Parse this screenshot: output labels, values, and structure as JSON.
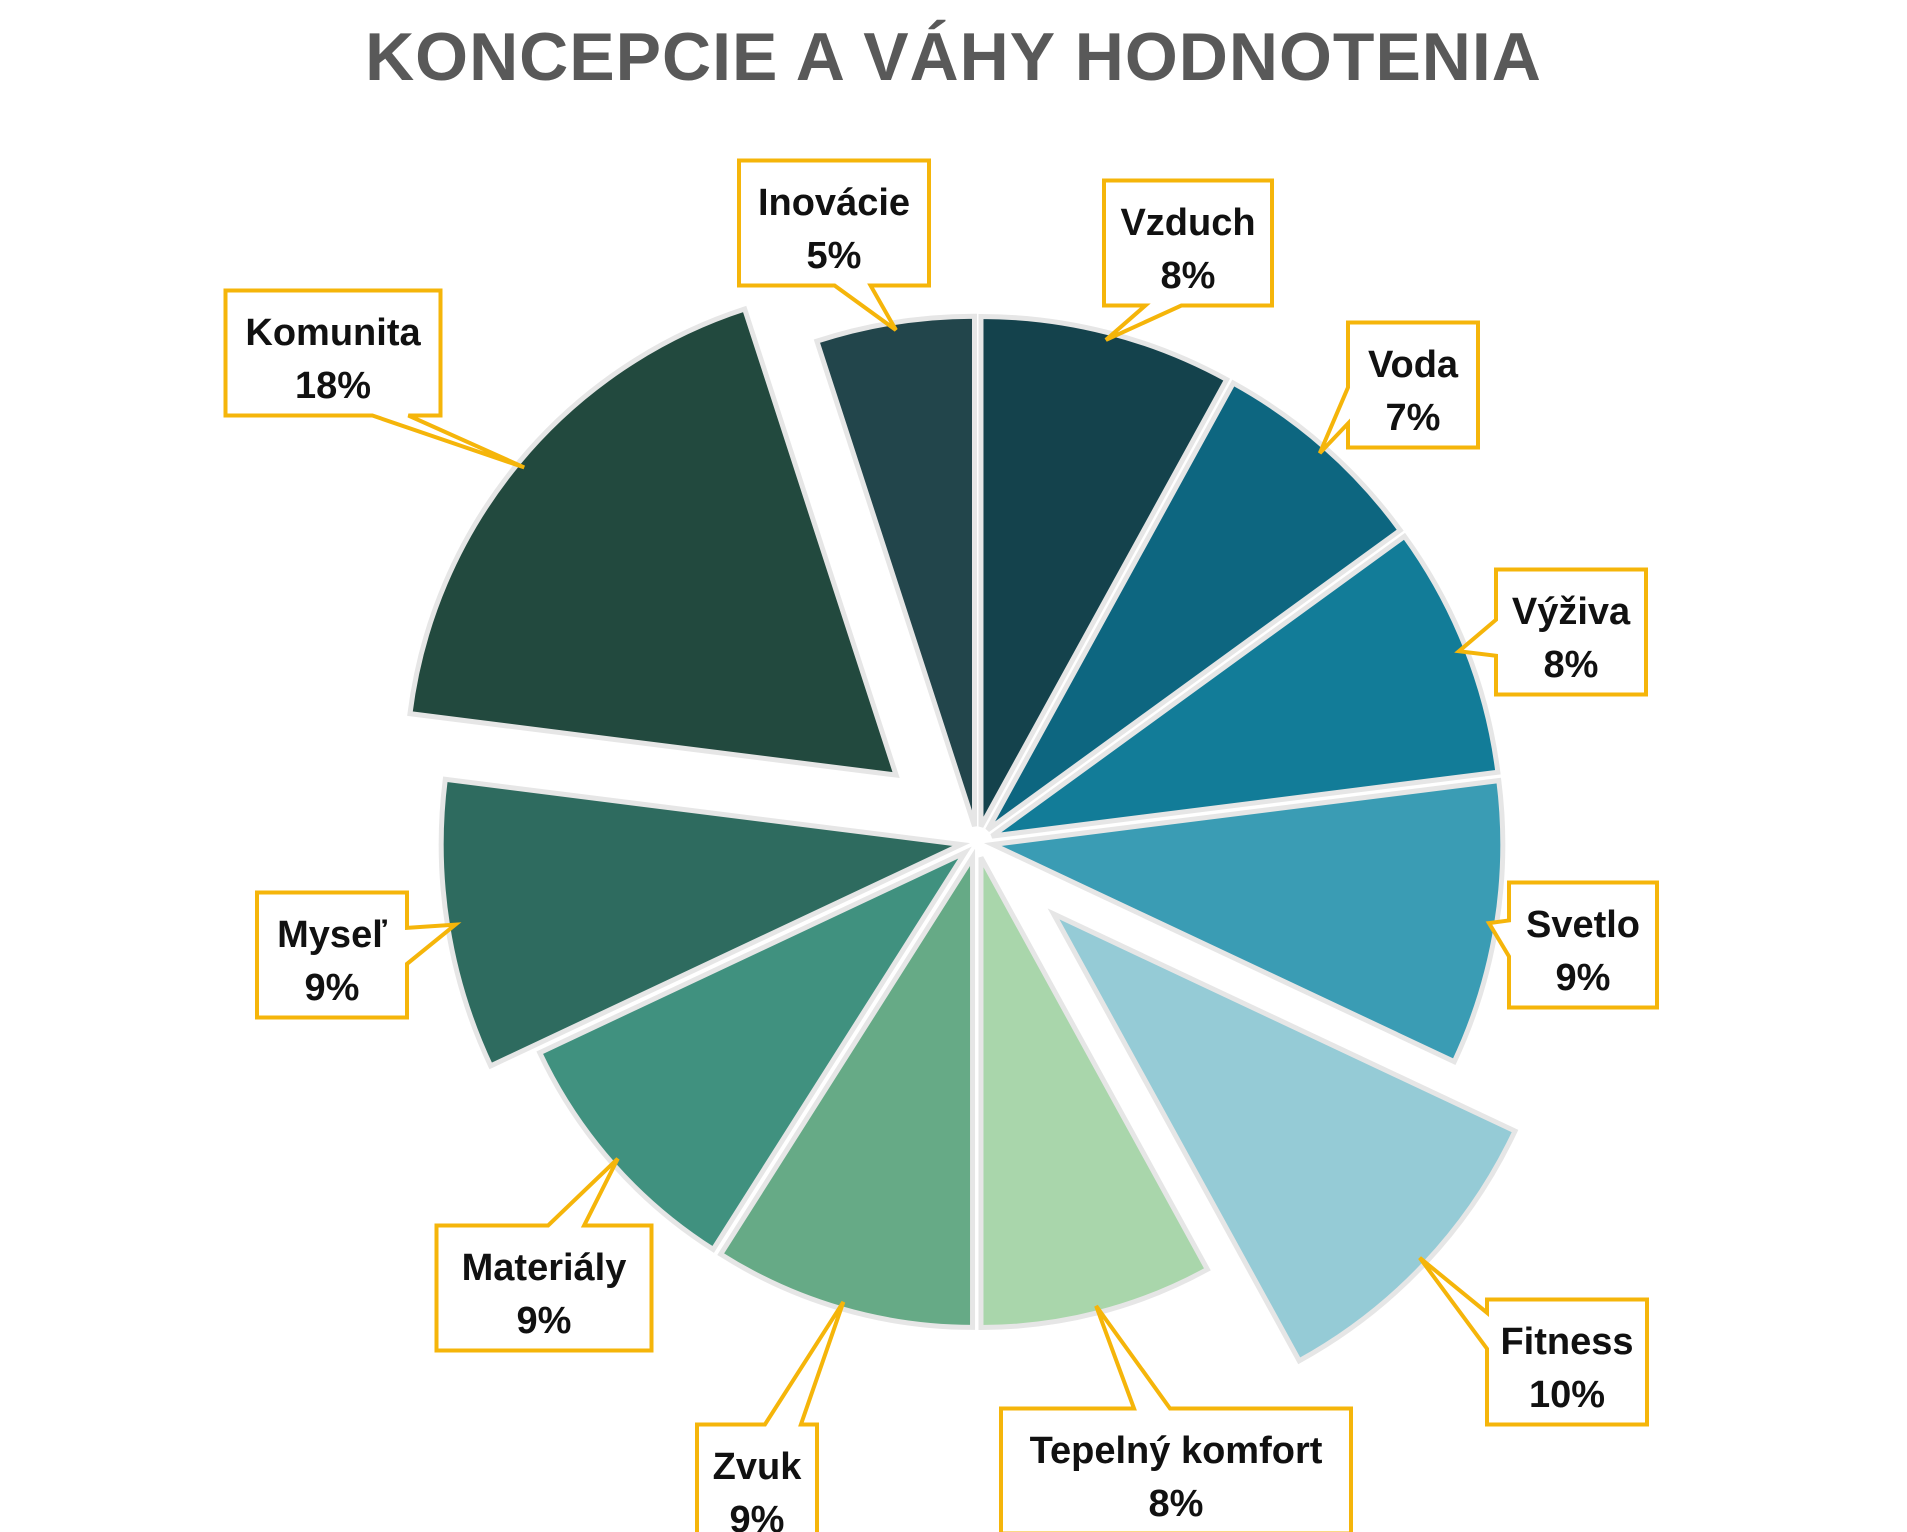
{
  "chart_data": {
    "type": "pie",
    "title": "KONCEPCIE A VÁHY HODNOTENIA",
    "categories": [
      "Vzduch",
      "Voda",
      "Výživa",
      "Svetlo",
      "Fitness",
      "Tepelný komfort",
      "Zvuk",
      "Materiály",
      "Myseľ",
      "Komunita",
      "Inovácie"
    ],
    "values": [
      8,
      7,
      8,
      9,
      10,
      8,
      9,
      9,
      9,
      18,
      5
    ],
    "labels": [
      "8%",
      "7%",
      "8%",
      "9%",
      "10%",
      "8%",
      "9%",
      "9%",
      "9%",
      "18%",
      "5%"
    ],
    "colors": [
      "#14424c",
      "#0d6680",
      "#127c98",
      "#3a9cb4",
      "#95cbd6",
      "#a9d6ab",
      "#66aa86",
      "#40917f",
      "#2e6b5f",
      "#22493e",
      "#22454b"
    ],
    "exploded": [
      "Fitness",
      "Komunita"
    ],
    "callout_border_color": "#f5b50a",
    "legend": "none"
  }
}
